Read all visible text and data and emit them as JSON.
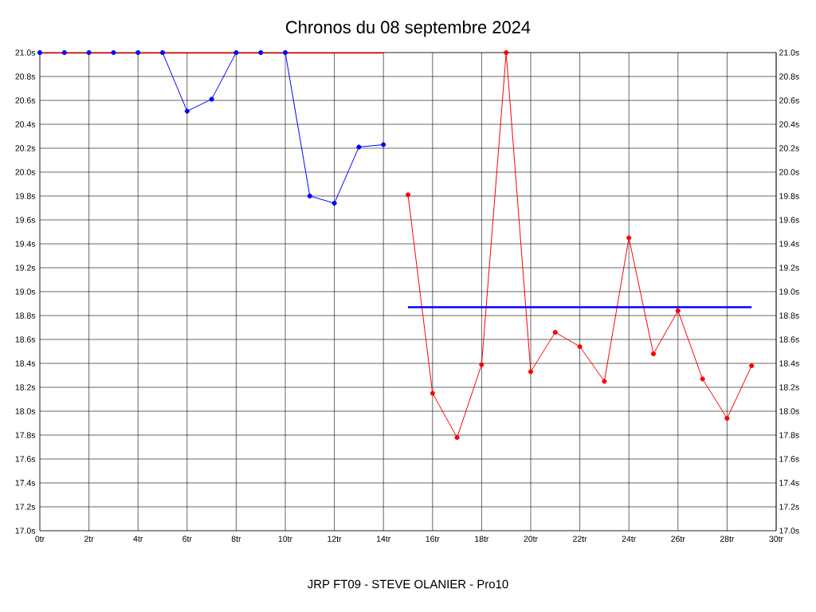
{
  "chart_data": {
    "type": "line",
    "title": "Chronos du 08 septembre 2024",
    "xlabel": "JRP FT09 - STEVE OLANIER - Pro10",
    "series": [
      {
        "color": "#0000ff",
        "x": [
          0,
          1,
          2,
          3,
          4,
          5,
          6,
          7,
          8,
          9,
          10,
          11,
          12,
          13,
          14
        ],
        "values": [
          21.0,
          21.0,
          21.0,
          21.0,
          21.0,
          21.0,
          20.51,
          20.61,
          21.0,
          21.0,
          21.0,
          19.8,
          19.74,
          20.21,
          20.23
        ]
      },
      {
        "color": "#ff0000",
        "x": [
          15,
          16,
          17,
          18,
          19,
          20,
          21,
          22,
          23,
          24,
          25,
          26,
          27,
          28,
          29
        ],
        "values": [
          19.81,
          18.15,
          17.78,
          18.39,
          21.0,
          18.33,
          18.66,
          18.54,
          18.25,
          19.45,
          18.48,
          18.84,
          18.27,
          17.94,
          18.38
        ]
      },
      {
        "color": "#ff0000",
        "marker": "none",
        "x": [
          0,
          14
        ],
        "values": [
          21.0,
          21.0
        ]
      },
      {
        "color": "#0000ff",
        "marker": "none",
        "x": [
          15,
          29
        ],
        "values": [
          18.87,
          18.87
        ]
      }
    ],
    "marker": "circle",
    "grid": true,
    "xlim": [
      0,
      30
    ],
    "xticks": [
      {
        "value": 0,
        "label": "0tr"
      },
      {
        "value": 2,
        "label": "2tr"
      },
      {
        "value": 4,
        "label": "4tr"
      },
      {
        "value": 6,
        "label": "6tr"
      },
      {
        "value": 8,
        "label": "8tr"
      },
      {
        "value": 10,
        "label": "10tr"
      },
      {
        "value": 12,
        "label": "12tr"
      },
      {
        "value": 14,
        "label": "14tr"
      },
      {
        "value": 16,
        "label": "16tr"
      },
      {
        "value": 18,
        "label": "18tr"
      },
      {
        "value": 20,
        "label": "20tr"
      },
      {
        "value": 22,
        "label": "22tr"
      },
      {
        "value": 24,
        "label": "24tr"
      },
      {
        "value": 26,
        "label": "26tr"
      },
      {
        "value": 28,
        "label": "28tr"
      },
      {
        "value": 30,
        "label": "30tr"
      }
    ],
    "ylim": [
      17.0,
      21.0
    ],
    "yticks": [
      {
        "value": 17.0,
        "label": "17.0s"
      },
      {
        "value": 17.2,
        "label": "17.2s"
      },
      {
        "value": 17.4,
        "label": "17.4s"
      },
      {
        "value": 17.6,
        "label": "17.6s"
      },
      {
        "value": 17.8,
        "label": "17.8s"
      },
      {
        "value": 18.0,
        "label": "18.0s"
      },
      {
        "value": 18.2,
        "label": "18.2s"
      },
      {
        "value": 18.4,
        "label": "18.4s"
      },
      {
        "value": 18.6,
        "label": "18.6s"
      },
      {
        "value": 18.8,
        "label": "18.8s"
      },
      {
        "value": 19.0,
        "label": "19.0s"
      },
      {
        "value": 19.2,
        "label": "19.2s"
      },
      {
        "value": 19.4,
        "label": "19.4s"
      },
      {
        "value": 19.6,
        "label": "19.6s"
      },
      {
        "value": 19.8,
        "label": "19.8s"
      },
      {
        "value": 20.0,
        "label": "20.0s"
      },
      {
        "value": 20.2,
        "label": "20.2s"
      },
      {
        "value": 20.4,
        "label": "20.4s"
      },
      {
        "value": 20.6,
        "label": "20.6s"
      },
      {
        "value": 20.8,
        "label": "20.8s"
      },
      {
        "value": 21.0,
        "label": "21.0s"
      }
    ],
    "y2lim": [
      17.0,
      21.0
    ],
    "y2ticks": [
      {
        "value": 17.0,
        "label": "17.0s"
      },
      {
        "value": 17.2,
        "label": "17.2s"
      },
      {
        "value": 17.4,
        "label": "17.4s"
      },
      {
        "value": 17.6,
        "label": "17.6s"
      },
      {
        "value": 17.8,
        "label": "17.8s"
      },
      {
        "value": 18.0,
        "label": "18.0s"
      },
      {
        "value": 18.2,
        "label": "18.2s"
      },
      {
        "value": 18.4,
        "label": "18.4s"
      },
      {
        "value": 18.6,
        "label": "18.6s"
      },
      {
        "value": 18.8,
        "label": "18.8s"
      },
      {
        "value": 19.0,
        "label": "19.0s"
      },
      {
        "value": 19.2,
        "label": "19.2s"
      },
      {
        "value": 19.4,
        "label": "19.4s"
      },
      {
        "value": 19.6,
        "label": "19.6s"
      },
      {
        "value": 19.8,
        "label": "19.8s"
      },
      {
        "value": 20.0,
        "label": "20.0s"
      },
      {
        "value": 20.2,
        "label": "20.2s"
      },
      {
        "value": 20.4,
        "label": "20.4s"
      },
      {
        "value": 20.6,
        "label": "20.6s"
      },
      {
        "value": 20.8,
        "label": "20.8s"
      },
      {
        "value": 21.0,
        "label": "21.0s"
      }
    ]
  }
}
